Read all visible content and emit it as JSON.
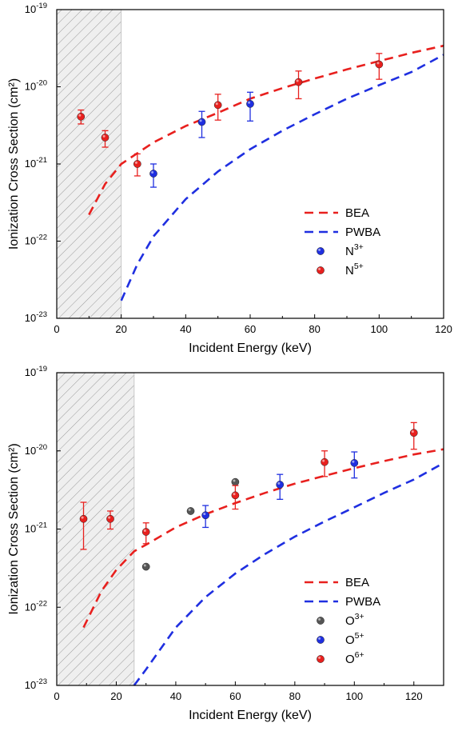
{
  "chart_data": [
    {
      "type": "scatter",
      "xlabel": "Incident Energy (keV)",
      "ylabel": "Ionization Cross Section (cm²)",
      "xlim": [
        0,
        120
      ],
      "ylim": [
        1e-23,
        1e-19
      ],
      "yscale": "log",
      "xticks": [
        "0",
        "20",
        "40",
        "60",
        "80",
        "100",
        "120"
      ],
      "yticks": [
        {
          "base": "10",
          "exp": "-23",
          "value": 1e-23
        },
        {
          "base": "10",
          "exp": "-22",
          "value": 1e-22
        },
        {
          "base": "10",
          "exp": "-21",
          "value": 1e-21
        },
        {
          "base": "10",
          "exp": "-20",
          "value": 1e-20
        },
        {
          "base": "10",
          "exp": "-19",
          "value": 1e-19
        }
      ],
      "shaded_region_x": [
        0,
        20
      ],
      "legend_position": "bottom-right",
      "curves": [
        {
          "name": "BEA",
          "color": "#e8201e",
          "style": "dashed",
          "points": [
            [
              10,
              2.2e-22
            ],
            [
              15,
              5.5e-22
            ],
            [
              20,
              1e-21
            ],
            [
              30,
              1.9e-21
            ],
            [
              40,
              3.1e-21
            ],
            [
              50,
              4.6e-21
            ],
            [
              60,
              7e-21
            ],
            [
              70,
              9.6e-21
            ],
            [
              80,
              1.28e-20
            ],
            [
              90,
              1.68e-20
            ],
            [
              100,
              2.15e-20
            ],
            [
              110,
              2.75e-20
            ],
            [
              120,
              3.4e-20
            ]
          ]
        },
        {
          "name": "PWBA",
          "color": "#1f2fe0",
          "style": "dashed",
          "points": [
            [
              20,
              1.7e-23
            ],
            [
              25,
              5e-23
            ],
            [
              30,
              1.15e-22
            ],
            [
              40,
              3.5e-22
            ],
            [
              50,
              8e-22
            ],
            [
              60,
              1.55e-21
            ],
            [
              70,
              2.7e-21
            ],
            [
              80,
              4.4e-21
            ],
            [
              90,
              7e-21
            ],
            [
              100,
              1.05e-20
            ],
            [
              110,
              1.55e-20
            ],
            [
              120,
              2.6e-20
            ]
          ]
        }
      ],
      "series": [
        {
          "name": "N",
          "charge": "3+",
          "color": "#1f2fe0",
          "points": [
            {
              "x": 30,
              "y": 7.5e-22,
              "ylo": 5e-22,
              "yhi": 1e-21
            },
            {
              "x": 45,
              "y": 3.5e-21,
              "ylo": 2.2e-21,
              "yhi": 4.8e-21
            },
            {
              "x": 60,
              "y": 6e-21,
              "ylo": 3.6e-21,
              "yhi": 8.5e-21
            }
          ]
        },
        {
          "name": "N",
          "charge": "5+",
          "color": "#e8201e",
          "points": [
            {
              "x": 7.5,
              "y": 4.1e-21,
              "ylo": 3.3e-21,
              "yhi": 5e-21
            },
            {
              "x": 15,
              "y": 2.2e-21,
              "ylo": 1.65e-21,
              "yhi": 2.7e-21
            },
            {
              "x": 25,
              "y": 1e-21,
              "ylo": 7e-22,
              "yhi": 1.35e-21
            },
            {
              "x": 50,
              "y": 5.8e-21,
              "ylo": 3.7e-21,
              "yhi": 8e-21
            },
            {
              "x": 75,
              "y": 1.15e-20,
              "ylo": 7e-21,
              "yhi": 1.6e-20
            },
            {
              "x": 100,
              "y": 1.95e-20,
              "ylo": 1.25e-20,
              "yhi": 2.7e-20
            }
          ]
        }
      ]
    },
    {
      "type": "scatter",
      "xlabel": "Incident Energy (keV)",
      "ylabel": "Ionization Cross Section (cm²)",
      "xlim": [
        0,
        130
      ],
      "ylim": [
        1e-23,
        1e-19
      ],
      "yscale": "log",
      "xticks": [
        "0",
        "20",
        "40",
        "60",
        "80",
        "100",
        "120"
      ],
      "xtick_values": [
        0,
        20,
        40,
        60,
        80,
        100,
        120
      ],
      "yticks": [
        {
          "base": "10",
          "exp": "-23",
          "value": 1e-23
        },
        {
          "base": "10",
          "exp": "-22",
          "value": 1e-22
        },
        {
          "base": "10",
          "exp": "-21",
          "value": 1e-21
        },
        {
          "base": "10",
          "exp": "-20",
          "value": 1e-20
        },
        {
          "base": "10",
          "exp": "-19",
          "value": 1e-19
        }
      ],
      "shaded_region_x": [
        0,
        26
      ],
      "legend_position": "bottom-right",
      "curves": [
        {
          "name": "BEA",
          "color": "#e8201e",
          "style": "dashed",
          "points": [
            [
              9,
              5.5e-23
            ],
            [
              15,
              1.6e-22
            ],
            [
              20,
              3e-22
            ],
            [
              26,
              5.2e-22
            ],
            [
              30,
              6.3e-22
            ],
            [
              40,
              1.05e-21
            ],
            [
              50,
              1.55e-21
            ],
            [
              60,
              2.15e-21
            ],
            [
              70,
              2.9e-21
            ],
            [
              80,
              3.8e-21
            ],
            [
              90,
              4.8e-21
            ],
            [
              100,
              6e-21
            ],
            [
              110,
              7.4e-21
            ],
            [
              120,
              9e-21
            ],
            [
              130,
              1.05e-20
            ]
          ]
        },
        {
          "name": "PWBA",
          "color": "#1f2fe0",
          "style": "dashed",
          "points": [
            [
              26,
              1e-23
            ],
            [
              30,
              1.6e-23
            ],
            [
              40,
              5.5e-23
            ],
            [
              50,
              1.35e-22
            ],
            [
              60,
              2.7e-22
            ],
            [
              70,
              4.8e-22
            ],
            [
              80,
              8e-22
            ],
            [
              90,
              1.25e-21
            ],
            [
              100,
              1.9e-21
            ],
            [
              110,
              2.9e-21
            ],
            [
              120,
              4.3e-21
            ],
            [
              130,
              7e-21
            ]
          ]
        }
      ],
      "series": [
        {
          "name": "O",
          "charge": "3+",
          "color": "#555555",
          "points": [
            {
              "x": 30,
              "y": 3.3e-22
            },
            {
              "x": 45,
              "y": 1.7e-21
            },
            {
              "x": 60,
              "y": 4e-21
            }
          ]
        },
        {
          "name": "O",
          "charge": "5+",
          "color": "#1f2fe0",
          "points": [
            {
              "x": 50,
              "y": 1.5e-21,
              "ylo": 1.05e-21,
              "yhi": 2e-21
            },
            {
              "x": 75,
              "y": 3.7e-21,
              "ylo": 2.4e-21,
              "yhi": 5e-21
            },
            {
              "x": 100,
              "y": 7e-21,
              "ylo": 4.5e-21,
              "yhi": 9.7e-21
            }
          ]
        },
        {
          "name": "O",
          "charge": "6+",
          "color": "#e8201e",
          "points": [
            {
              "x": 9,
              "y": 1.35e-21,
              "ylo": 5.5e-22,
              "yhi": 2.2e-21
            },
            {
              "x": 18,
              "y": 1.35e-21,
              "ylo": 1e-21,
              "yhi": 1.7e-21
            },
            {
              "x": 30,
              "y": 9.2e-22,
              "ylo": 6.5e-22,
              "yhi": 1.2e-21
            },
            {
              "x": 60,
              "y": 2.7e-21,
              "ylo": 1.8e-21,
              "yhi": 3.6e-21
            },
            {
              "x": 90,
              "y": 7.2e-21,
              "ylo": 4.7e-21,
              "yhi": 1e-20
            },
            {
              "x": 120,
              "y": 1.7e-20,
              "ylo": 1.05e-20,
              "yhi": 2.3e-20
            }
          ]
        }
      ]
    }
  ]
}
